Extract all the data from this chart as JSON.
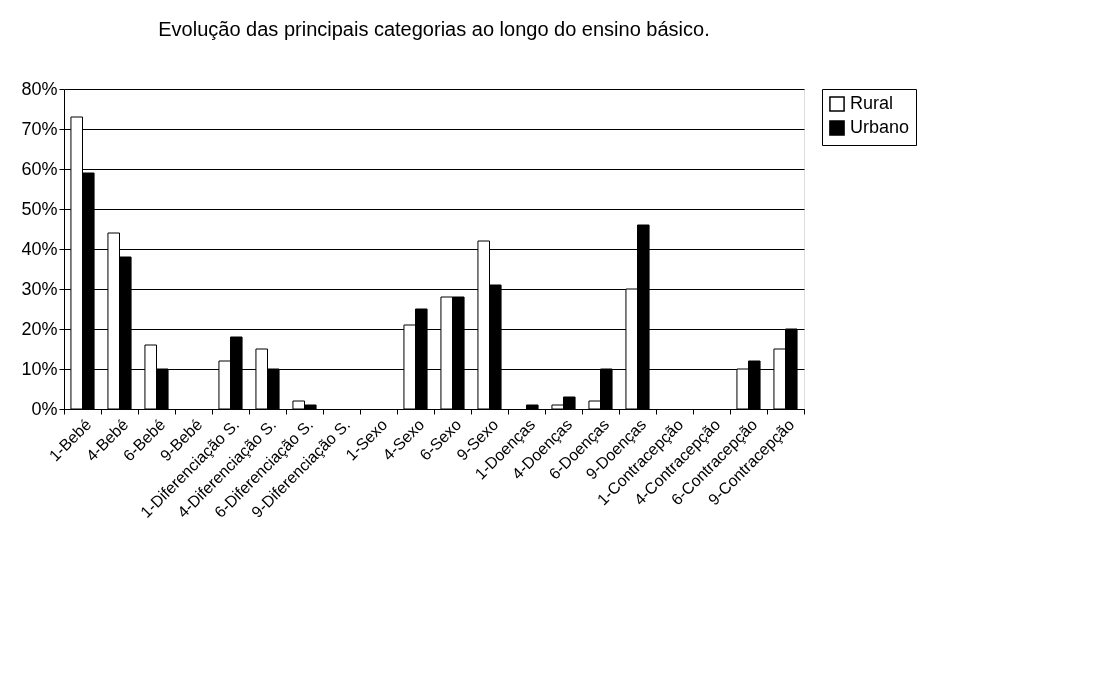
{
  "chart_data": {
    "type": "bar",
    "title": "Evolução das principais categorias ao longo do ensino básico.",
    "categories": [
      "1-Bebé",
      "4-Bebé",
      "6-Bebé",
      "9-Bebé",
      "1-Diferenciação S.",
      "4-Diferenciação S.",
      "6-Diferenciação S.",
      "9-Diferenciação S.",
      "1-Sexo",
      "4-Sexo",
      "6-Sexo",
      "9-Sexo",
      "1-Doenças",
      "4-Doenças",
      "6-Doenças",
      "9-Doenças",
      "1-Contracepção",
      "4-Contracepção",
      "6-Contracepção",
      "9-Contracepção"
    ],
    "series": [
      {
        "name": "Rural",
        "color": "#ffffff",
        "values": [
          73,
          44,
          16,
          null,
          12,
          15,
          2,
          null,
          null,
          21,
          28,
          42,
          null,
          1,
          2,
          30,
          null,
          null,
          10,
          15
        ]
      },
      {
        "name": "Urbano",
        "color": "#000000",
        "values": [
          59,
          38,
          10,
          null,
          18,
          10,
          1,
          null,
          null,
          25,
          28,
          31,
          1,
          3,
          10,
          46,
          null,
          null,
          12,
          20
        ]
      }
    ],
    "ylim": [
      0,
      80
    ],
    "yticks": [
      {
        "value": 0,
        "label": "0%"
      },
      {
        "value": 10,
        "label": "10%"
      },
      {
        "value": 20,
        "label": "20%"
      },
      {
        "value": 30,
        "label": "30%"
      },
      {
        "value": 40,
        "label": "40%"
      },
      {
        "value": 50,
        "label": "50%"
      },
      {
        "value": 60,
        "label": "60%"
      },
      {
        "value": 70,
        "label": "70%"
      },
      {
        "value": 80,
        "label": "80%"
      }
    ],
    "grid": "y",
    "legend": "right"
  }
}
